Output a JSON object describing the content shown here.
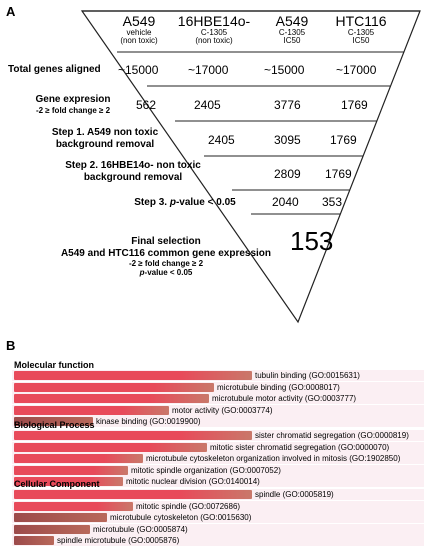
{
  "panelA": {
    "letter": "A",
    "columns": [
      {
        "name": "A549",
        "line1": "vehicle",
        "line2": "(non toxic)"
      },
      {
        "name": "16HBE14o-",
        "line1": "C-1305",
        "line2": "(non toxic)"
      },
      {
        "name": "A549",
        "line1": "C-1305",
        "line2": "IC50"
      },
      {
        "name": "HTC116",
        "line1": "C-1305",
        "line2": "IC50"
      }
    ],
    "rows": [
      {
        "label": "Total genes aligned",
        "sub": "",
        "values": [
          "~15000",
          "~17000",
          "~15000",
          "~17000"
        ]
      },
      {
        "label": "Gene expresion",
        "sub": "-2 ≥ fold change ≥ 2",
        "values": [
          "562",
          "2405",
          "3776",
          "1769"
        ]
      },
      {
        "label": "Step 1. A549 non toxic",
        "label2": "background removal",
        "values": [
          "2405",
          "3095",
          "1769"
        ]
      },
      {
        "label": "Step 2. 16HBE14o- non toxic",
        "label2": "background removal",
        "values": [
          "2809",
          "1769"
        ]
      },
      {
        "label_prefix": "Step 3. ",
        "label_italic": "p",
        "label_suffix": "-value < 0.05",
        "values": [
          "2040",
          "353"
        ]
      }
    ],
    "final": {
      "line1": "Final selection",
      "line2": "A549 and HTC116 common gene expression",
      "line3": "-2 ≥ fold change ≥ 2",
      "line4_italic": "p",
      "line4_suffix": "-value < 0.05",
      "value": "153"
    }
  },
  "panelB": {
    "letter": "B",
    "sections": [
      {
        "title": "Molecular function",
        "items": [
          {
            "label": "tubulin binding (GO:0015631)",
            "value": 1.0
          },
          {
            "label": "microtubule binding (GO:0008017)",
            "value": 0.84
          },
          {
            "label": "microtubule motor activity (GO:0003777)",
            "value": 0.82
          },
          {
            "label": "motor activity (GO:0003774)",
            "value": 0.65
          },
          {
            "label": "kinase binding (GO:0019900)",
            "value": 0.33
          }
        ]
      },
      {
        "title": "Biological Process",
        "items": [
          {
            "label": "sister chromatid segregation (GO:0000819)",
            "value": 1.0
          },
          {
            "label": "mitotic sister chromatid segregation (GO:0000070)",
            "value": 0.81
          },
          {
            "label": "microtubule cytoskeleton organization involved in mitosis (GO:1902850)",
            "value": 0.54
          },
          {
            "label": "mitotic spindle organization (GO:0007052)",
            "value": 0.48
          },
          {
            "label": "mitotic nuclear division (GO:0140014)",
            "value": 0.46
          }
        ]
      },
      {
        "title": "Cellular Component",
        "items": [
          {
            "label": "spindle (GO:0005819)",
            "value": 1.0
          },
          {
            "label": "mitotic spindle (GO:0072686)",
            "value": 0.5
          },
          {
            "label": "microtubule cytoskeleton (GO:0015630)",
            "value": 0.39
          },
          {
            "label": "microtubule (GO:0005874)",
            "value": 0.32
          },
          {
            "label": "spindle microtubule (GO:0005876)",
            "value": 0.17
          }
        ]
      }
    ],
    "colors": {
      "bar_start": "#e84a5a",
      "bar_end": "#c9786a",
      "row_bg": "#fbeff3"
    }
  }
}
